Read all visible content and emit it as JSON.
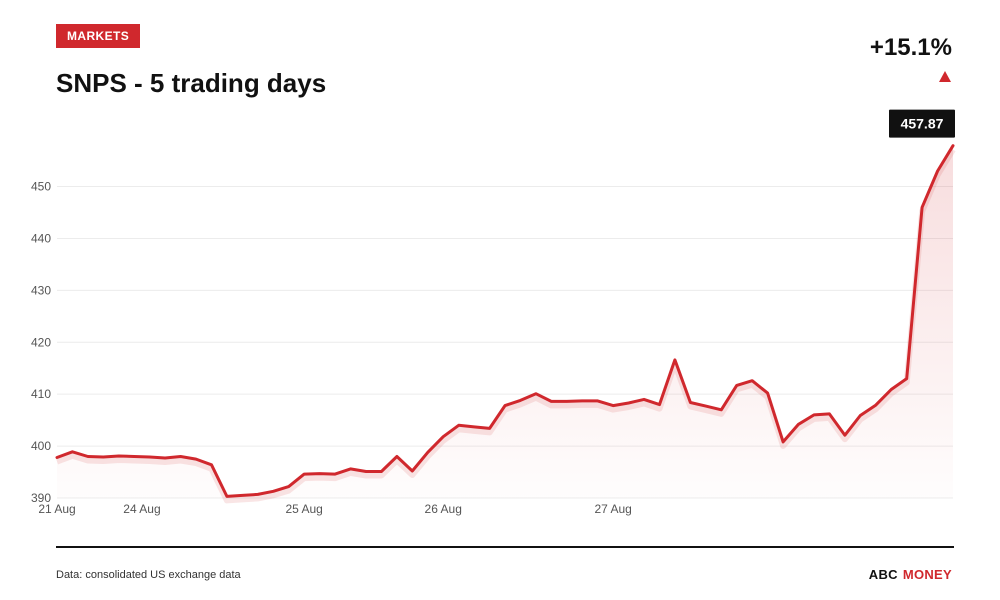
{
  "header": {
    "badge": "MARKETS",
    "title": "SNPS - 5 trading days",
    "change": "+15.1%"
  },
  "footer": {
    "source": "Data: consolidated US exchange data",
    "brand_part1": "ABC",
    "brand_part2": "MONEY"
  },
  "colors": {
    "accent": "#d0282d",
    "text": "#111111"
  },
  "chart_data": {
    "type": "line",
    "title": "SNPS - 5 trading days",
    "xlabel": "",
    "ylabel": "",
    "ylim": [
      390,
      458
    ],
    "yticks": [
      390,
      400,
      410,
      420,
      430,
      440,
      450
    ],
    "xtick_labels": [
      "21 Aug",
      "24 Aug",
      "25 Aug",
      "26 Aug",
      "27 Aug"
    ],
    "xtick_index": [
      0,
      5.5,
      16,
      25,
      36
    ],
    "last_value_label": "457.87",
    "grid": true,
    "series": [
      {
        "values": [
          397.8,
          398.9,
          398.0,
          397.9,
          398.1,
          398.0,
          397.9,
          397.7,
          398.0,
          397.5,
          396.4,
          390.3,
          390.5,
          390.7,
          391.3,
          392.2,
          394.6,
          394.7,
          394.6,
          395.6,
          395.1,
          395.1,
          398.0,
          395.2,
          398.8,
          401.8,
          404.0,
          403.7,
          403.4,
          407.8,
          408.8,
          410.1,
          408.6,
          408.6,
          408.7,
          408.7,
          407.8,
          408.3,
          409.0,
          408.0,
          416.6,
          408.4,
          407.7,
          407.0,
          411.7,
          412.6,
          410.2,
          400.8,
          404.2,
          406.0,
          406.2,
          402.1,
          405.9,
          407.9,
          410.9,
          413.0,
          446.0,
          453.0,
          457.87
        ]
      }
    ]
  }
}
